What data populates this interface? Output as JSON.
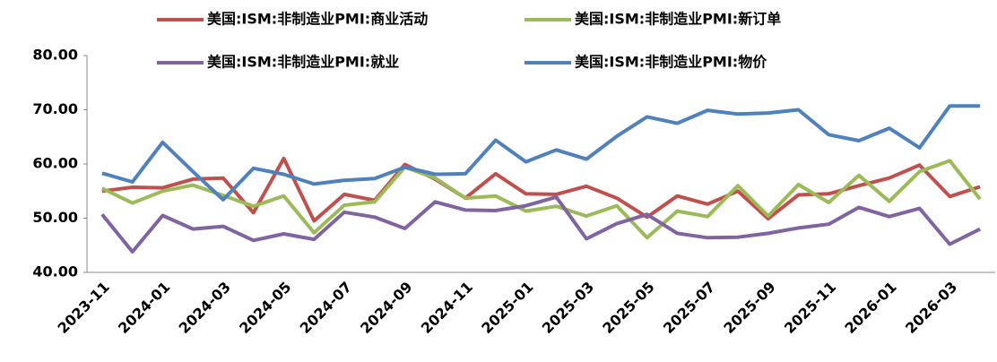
{
  "chart_data": {
    "type": "line",
    "categories": [
      "2023-11",
      null,
      "2024-01",
      null,
      "2024-03",
      null,
      "2024-05",
      null,
      "2024-07",
      null,
      "2024-09",
      null,
      "2024-11",
      null,
      "2025-01",
      null,
      "2025-03",
      null,
      "2025-05",
      null,
      "2025-07",
      null,
      "2025-09",
      null,
      "2025-11",
      null,
      "2026-01",
      null,
      "2026-03",
      null
    ],
    "series": [
      {
        "name": "美国:ISM:非制造业PMI:商业活动",
        "color": "#c0504d",
        "values": [
          55.0,
          55.7,
          55.6,
          57.2,
          57.4,
          51.0,
          61.0,
          49.5,
          54.4,
          53.3,
          59.9,
          57.2,
          53.7,
          58.2,
          54.5,
          54.4,
          55.9,
          53.7,
          50.2,
          54.1,
          52.6,
          55.0,
          49.9,
          54.3,
          54.5,
          56.0,
          57.4,
          59.8,
          54.0,
          55.8
        ]
      },
      {
        "name": "美国:ISM:非制造业PMI:新订单",
        "color": "#9bbb59",
        "values": [
          55.5,
          52.8,
          55.0,
          56.1,
          54.2,
          52.2,
          54.1,
          47.3,
          52.4,
          53.0,
          59.4,
          57.4,
          53.7,
          54.1,
          51.3,
          52.2,
          50.4,
          52.3,
          46.4,
          51.3,
          50.3,
          56.0,
          50.4,
          56.2,
          52.9,
          57.9,
          53.1,
          58.6,
          60.6,
          53.5
        ]
      },
      {
        "name": "美国:ISM:非制造业PMI:就业",
        "color": "#8064a2",
        "values": [
          50.7,
          43.8,
          50.5,
          48.0,
          48.5,
          45.9,
          47.1,
          46.1,
          51.1,
          50.2,
          48.1,
          53.0,
          51.5,
          51.4,
          52.3,
          53.9,
          46.2,
          49.0,
          50.7,
          47.2,
          46.4,
          46.5,
          47.2,
          48.2,
          48.9,
          52.0,
          50.3,
          51.8,
          45.2,
          48.0
        ]
      },
      {
        "name": "美国:ISM:非制造业PMI:物价",
        "color": "#4f81bd",
        "values": [
          58.3,
          56.7,
          64.0,
          58.6,
          53.4,
          59.2,
          58.1,
          56.3,
          57.0,
          57.3,
          59.4,
          58.1,
          58.2,
          64.4,
          60.4,
          62.6,
          60.9,
          65.1,
          68.7,
          67.5,
          69.9,
          69.2,
          69.4,
          70.0,
          65.4,
          64.3,
          66.6,
          63.0,
          70.7,
          70.7
        ]
      }
    ],
    "ylim": [
      40,
      80
    ],
    "yticks": [
      {
        "value": 40,
        "label": "40.00"
      },
      {
        "value": 50,
        "label": "50.00"
      },
      {
        "value": 60,
        "label": "60.00"
      },
      {
        "value": 70,
        "label": "70.00"
      },
      {
        "value": 80,
        "label": "80.00"
      }
    ],
    "grid": false
  }
}
